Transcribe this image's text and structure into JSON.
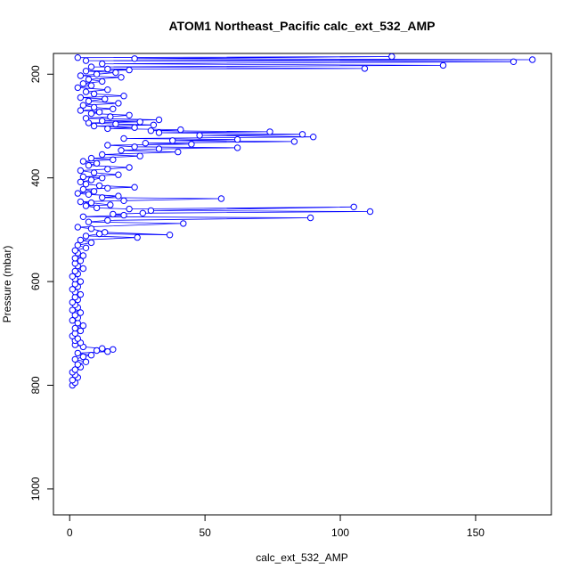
{
  "chart_data": {
    "type": "scatter",
    "title": "ATOM1 Northeast_Pacific calc_ext_532_AMP",
    "xlabel": "calc_ext_532_AMP",
    "ylabel": "Pressure (mbar)",
    "xlim": [
      -6,
      178
    ],
    "ylim": [
      1050,
      160
    ],
    "y_reversed": true,
    "x_ticks": [
      0,
      50,
      100,
      150
    ],
    "y_ticks": [
      200,
      400,
      600,
      800,
      1000
    ],
    "grid": false,
    "legend": "none",
    "series": [
      {
        "color": "#0000ff",
        "marker": "open-circle",
        "connected": true,
        "points": [
          [
            1,
            800
          ],
          [
            2,
            795
          ],
          [
            1,
            790
          ],
          [
            3,
            785
          ],
          [
            2,
            780
          ],
          [
            1,
            775
          ],
          [
            2,
            770
          ],
          [
            4,
            765
          ],
          [
            3,
            760
          ],
          [
            6,
            755
          ],
          [
            2,
            750
          ],
          [
            5,
            745
          ],
          [
            8,
            742
          ],
          [
            3,
            738
          ],
          [
            14,
            735
          ],
          [
            10,
            733
          ],
          [
            16,
            731
          ],
          [
            12,
            729
          ],
          [
            5,
            726
          ],
          [
            2,
            722
          ],
          [
            4,
            718
          ],
          [
            2,
            714
          ],
          [
            3,
            710
          ],
          [
            1,
            705
          ],
          [
            2,
            700
          ],
          [
            4,
            695
          ],
          [
            2,
            690
          ],
          [
            5,
            685
          ],
          [
            3,
            680
          ],
          [
            1,
            675
          ],
          [
            3,
            670
          ],
          [
            2,
            665
          ],
          [
            4,
            660
          ],
          [
            1,
            655
          ],
          [
            3,
            650
          ],
          [
            2,
            645
          ],
          [
            1,
            640
          ],
          [
            3,
            635
          ],
          [
            2,
            630
          ],
          [
            4,
            625
          ],
          [
            2,
            620
          ],
          [
            1,
            615
          ],
          [
            3,
            610
          ],
          [
            2,
            605
          ],
          [
            4,
            600
          ],
          [
            2,
            595
          ],
          [
            1,
            590
          ],
          [
            3,
            585
          ],
          [
            2,
            580
          ],
          [
            5,
            575
          ],
          [
            3,
            570
          ],
          [
            2,
            565
          ],
          [
            4,
            560
          ],
          [
            2,
            555
          ],
          [
            5,
            550
          ],
          [
            3,
            545
          ],
          [
            2,
            540
          ],
          [
            6,
            535
          ],
          [
            3,
            530
          ],
          [
            8,
            525
          ],
          [
            4,
            520
          ],
          [
            25,
            515
          ],
          [
            6,
            512
          ],
          [
            11,
            508
          ],
          [
            37,
            510
          ],
          [
            13,
            505
          ],
          [
            8,
            498
          ],
          [
            3,
            495
          ],
          [
            42,
            488
          ],
          [
            7,
            485
          ],
          [
            14,
            482
          ],
          [
            89,
            477
          ],
          [
            5,
            475
          ],
          [
            20,
            472
          ],
          [
            16,
            470
          ],
          [
            27,
            468
          ],
          [
            111,
            465
          ],
          [
            30,
            463
          ],
          [
            105,
            456
          ],
          [
            22,
            460
          ],
          [
            10,
            458
          ],
          [
            6,
            454
          ],
          [
            15,
            452
          ],
          [
            8,
            448
          ],
          [
            4,
            446
          ],
          [
            20,
            444
          ],
          [
            56,
            440
          ],
          [
            12,
            438
          ],
          [
            18,
            435
          ],
          [
            7,
            432
          ],
          [
            3,
            430
          ],
          [
            9,
            426
          ],
          [
            5,
            422
          ],
          [
            14,
            420
          ],
          [
            24,
            418
          ],
          [
            11,
            415
          ],
          [
            6,
            412
          ],
          [
            4,
            408
          ],
          [
            8,
            404
          ],
          [
            12,
            400
          ],
          [
            5,
            398
          ],
          [
            18,
            394
          ],
          [
            9,
            390
          ],
          [
            4,
            386
          ],
          [
            14,
            383
          ],
          [
            22,
            380
          ],
          [
            7,
            376
          ],
          [
            10,
            372
          ],
          [
            5,
            368
          ],
          [
            16,
            365
          ],
          [
            8,
            362
          ],
          [
            26,
            358
          ],
          [
            12,
            355
          ],
          [
            40,
            350
          ],
          [
            19,
            347
          ],
          [
            33,
            344
          ],
          [
            62,
            342
          ],
          [
            24,
            340
          ],
          [
            14,
            337
          ],
          [
            45,
            335
          ],
          [
            28,
            333
          ],
          [
            83,
            330
          ],
          [
            38,
            328
          ],
          [
            62,
            326
          ],
          [
            20,
            324
          ],
          [
            90,
            321
          ],
          [
            48,
            318
          ],
          [
            86,
            316
          ],
          [
            33,
            313
          ],
          [
            74,
            311
          ],
          [
            30,
            309
          ],
          [
            41,
            307
          ],
          [
            14,
            305
          ],
          [
            24,
            303
          ],
          [
            9,
            300
          ],
          [
            31,
            298
          ],
          [
            17,
            296
          ],
          [
            7,
            294
          ],
          [
            26,
            292
          ],
          [
            12,
            290
          ],
          [
            33,
            288
          ],
          [
            6,
            285
          ],
          [
            15,
            282
          ],
          [
            22,
            279
          ],
          [
            8,
            276
          ],
          [
            11,
            273
          ],
          [
            4,
            270
          ],
          [
            16,
            267
          ],
          [
            9,
            264
          ],
          [
            5,
            260
          ],
          [
            18,
            256
          ],
          [
            7,
            252
          ],
          [
            13,
            248
          ],
          [
            4,
            245
          ],
          [
            20,
            242
          ],
          [
            9,
            238
          ],
          [
            6,
            234
          ],
          [
            14,
            230
          ],
          [
            3,
            226
          ],
          [
            8,
            222
          ],
          [
            5,
            218
          ],
          [
            12,
            214
          ],
          [
            7,
            210
          ],
          [
            19,
            206
          ],
          [
            4,
            203
          ],
          [
            10,
            200
          ],
          [
            17,
            197
          ],
          [
            6,
            194
          ],
          [
            22,
            192
          ],
          [
            14,
            190
          ],
          [
            109,
            189
          ],
          [
            8,
            186
          ],
          [
            138,
            183
          ],
          [
            12,
            180
          ],
          [
            164,
            176
          ],
          [
            6,
            174
          ],
          [
            171,
            172
          ],
          [
            24,
            170
          ],
          [
            119,
            166
          ],
          [
            3,
            168
          ]
        ]
      }
    ]
  }
}
